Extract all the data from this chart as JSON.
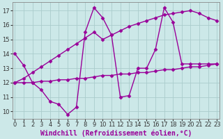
{
  "xlabel": "Windchill (Refroidissement éolien,°C)",
  "background_color": "#cce8e8",
  "grid_color": "#aacccc",
  "line_color": "#990099",
  "series": [
    {
      "x": [
        0,
        1,
        2,
        3,
        4,
        5,
        6,
        7,
        8,
        9,
        10,
        11,
        12,
        13,
        14,
        15,
        16,
        17,
        18,
        19,
        20,
        21,
        22,
        23
      ],
      "y": [
        14.0,
        13.2,
        12.0,
        11.5,
        10.7,
        10.5,
        9.8,
        10.3,
        15.5,
        17.2,
        16.5,
        15.3,
        11.0,
        11.1,
        13.0,
        13.0,
        14.3,
        17.2,
        16.2,
        13.3,
        13.3,
        13.3,
        13.3,
        13.3
      ]
    },
    {
      "x": [
        0,
        1,
        2,
        3,
        4,
        5,
        6,
        7,
        8,
        9,
        10,
        11,
        12,
        13,
        14,
        15,
        16,
        17,
        18,
        19,
        20,
        21,
        22,
        23
      ],
      "y": [
        12.0,
        12.0,
        12.0,
        12.1,
        12.1,
        12.2,
        12.2,
        12.3,
        12.3,
        12.4,
        12.5,
        12.5,
        12.6,
        12.6,
        12.7,
        12.7,
        12.8,
        12.9,
        12.9,
        13.0,
        13.1,
        13.1,
        13.2,
        13.3
      ]
    },
    {
      "x": [
        0,
        1,
        2,
        3,
        4,
        5,
        6,
        7,
        8,
        9,
        10,
        11,
        12,
        13,
        14,
        15,
        16,
        17,
        18,
        19,
        20,
        21,
        22,
        23
      ],
      "y": [
        12.0,
        12.3,
        12.7,
        13.1,
        13.5,
        13.9,
        14.3,
        14.7,
        15.1,
        15.5,
        15.0,
        15.3,
        15.6,
        15.9,
        16.1,
        16.3,
        16.5,
        16.7,
        16.8,
        16.9,
        17.0,
        16.8,
        16.5,
        16.3
      ]
    }
  ],
  "xlim": [
    -0.3,
    23.3
  ],
  "ylim": [
    9.5,
    17.6
  ],
  "yticks": [
    10,
    11,
    12,
    13,
    14,
    15,
    16,
    17
  ],
  "xticks": [
    0,
    1,
    2,
    3,
    4,
    5,
    6,
    7,
    8,
    9,
    10,
    11,
    12,
    13,
    14,
    15,
    16,
    17,
    18,
    19,
    20,
    21,
    22,
    23
  ],
  "tick_fontsize": 6,
  "xlabel_fontsize": 7,
  "marker": "D",
  "marker_size": 2.5,
  "linewidth": 1.0
}
